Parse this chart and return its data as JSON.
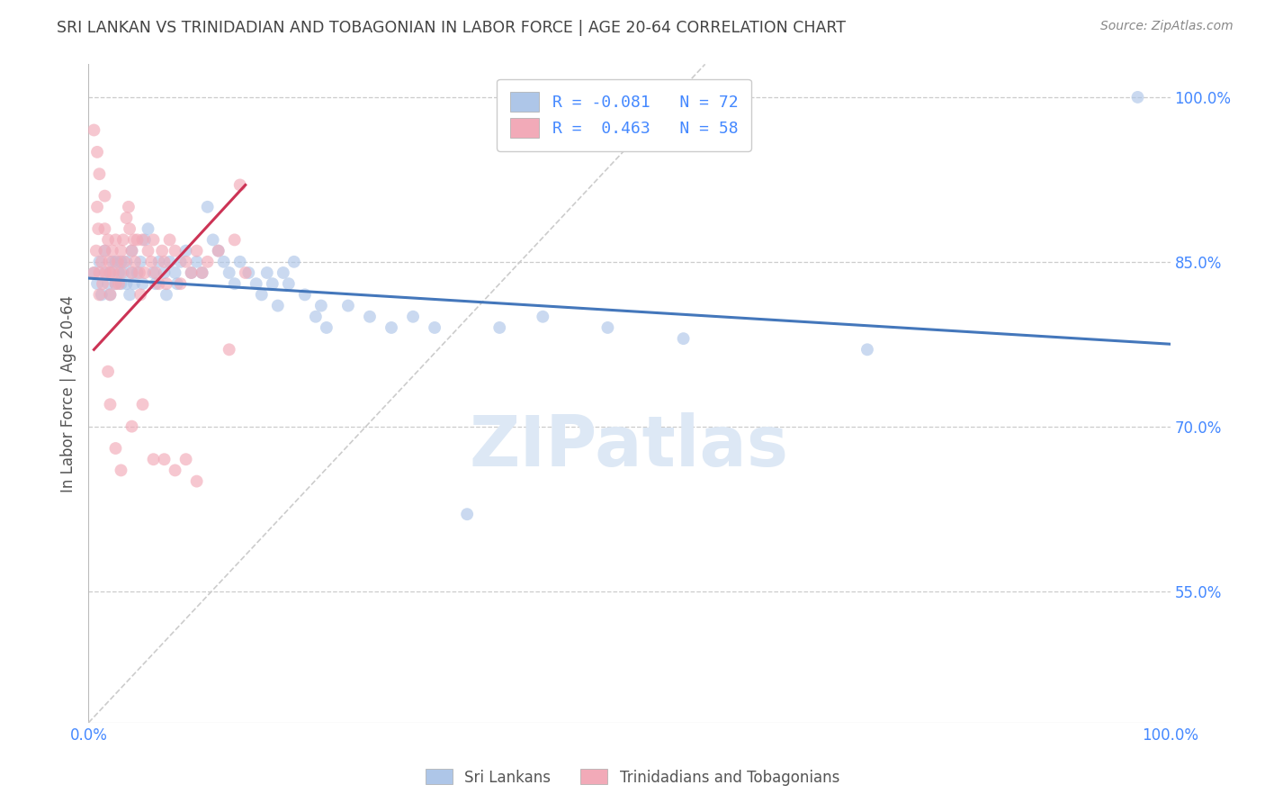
{
  "title": "SRI LANKAN VS TRINIDADIAN AND TOBAGONIAN IN LABOR FORCE | AGE 20-64 CORRELATION CHART",
  "source": "Source: ZipAtlas.com",
  "ylabel": "In Labor Force | Age 20-64",
  "xlim": [
    0.0,
    1.0
  ],
  "ylim": [
    0.43,
    1.03
  ],
  "x_ticks": [
    0.0,
    0.25,
    0.5,
    0.75,
    1.0
  ],
  "x_tick_labels": [
    "0.0%",
    "",
    "",
    "",
    "100.0%"
  ],
  "y_ticks_right": [
    0.55,
    0.7,
    0.85,
    1.0
  ],
  "y_tick_labels_right": [
    "55.0%",
    "70.0%",
    "85.0%",
    "100.0%"
  ],
  "legend_text_blue": "R = -0.081   N = 72",
  "legend_text_pink": "R =  0.463   N = 58",
  "sri_lankan_color": "#aec6e8",
  "trinidadian_color": "#f2aab8",
  "blue_line_color": "#4477bb",
  "pink_line_color": "#cc3355",
  "diag_line_color": "#cccccc",
  "background_color": "#ffffff",
  "grid_color": "#cccccc",
  "title_color": "#444444",
  "right_axis_color": "#4488ff",
  "marker_size": 100,
  "marker_alpha": 0.65,
  "sri_lankans_x": [
    0.005,
    0.008,
    0.01,
    0.012,
    0.015,
    0.015,
    0.018,
    0.02,
    0.02,
    0.022,
    0.025,
    0.025,
    0.028,
    0.03,
    0.03,
    0.032,
    0.035,
    0.035,
    0.038,
    0.04,
    0.04,
    0.042,
    0.045,
    0.048,
    0.05,
    0.052,
    0.055,
    0.06,
    0.062,
    0.065,
    0.07,
    0.072,
    0.075,
    0.08,
    0.082,
    0.085,
    0.09,
    0.095,
    0.1,
    0.105,
    0.11,
    0.115,
    0.12,
    0.125,
    0.13,
    0.135,
    0.14,
    0.148,
    0.155,
    0.16,
    0.165,
    0.17,
    0.175,
    0.18,
    0.185,
    0.19,
    0.2,
    0.21,
    0.215,
    0.22,
    0.24,
    0.26,
    0.28,
    0.3,
    0.32,
    0.35,
    0.38,
    0.42,
    0.48,
    0.55,
    0.72,
    0.97
  ],
  "sri_lankans_y": [
    0.84,
    0.83,
    0.85,
    0.82,
    0.84,
    0.86,
    0.83,
    0.84,
    0.82,
    0.85,
    0.83,
    0.85,
    0.84,
    0.83,
    0.85,
    0.84,
    0.83,
    0.85,
    0.82,
    0.84,
    0.86,
    0.83,
    0.84,
    0.85,
    0.83,
    0.87,
    0.88,
    0.84,
    0.83,
    0.85,
    0.84,
    0.82,
    0.85,
    0.84,
    0.83,
    0.85,
    0.86,
    0.84,
    0.85,
    0.84,
    0.9,
    0.87,
    0.86,
    0.85,
    0.84,
    0.83,
    0.85,
    0.84,
    0.83,
    0.82,
    0.84,
    0.83,
    0.81,
    0.84,
    0.83,
    0.85,
    0.82,
    0.8,
    0.81,
    0.79,
    0.81,
    0.8,
    0.79,
    0.8,
    0.79,
    0.62,
    0.79,
    0.8,
    0.79,
    0.78,
    0.77,
    1.0
  ],
  "trinidadians_x": [
    0.005,
    0.007,
    0.008,
    0.009,
    0.01,
    0.01,
    0.012,
    0.013,
    0.015,
    0.015,
    0.016,
    0.018,
    0.019,
    0.02,
    0.02,
    0.022,
    0.023,
    0.025,
    0.025,
    0.027,
    0.028,
    0.03,
    0.03,
    0.032,
    0.033,
    0.035,
    0.037,
    0.038,
    0.04,
    0.04,
    0.042,
    0.043,
    0.045,
    0.047,
    0.048,
    0.05,
    0.052,
    0.055,
    0.058,
    0.06,
    0.062,
    0.065,
    0.068,
    0.07,
    0.072,
    0.075,
    0.08,
    0.085,
    0.09,
    0.095,
    0.1,
    0.105,
    0.11,
    0.12,
    0.13,
    0.135,
    0.14,
    0.145
  ],
  "trinidadians_y": [
    0.84,
    0.86,
    0.9,
    0.88,
    0.84,
    0.82,
    0.85,
    0.83,
    0.88,
    0.86,
    0.84,
    0.87,
    0.85,
    0.84,
    0.82,
    0.86,
    0.84,
    0.83,
    0.87,
    0.85,
    0.83,
    0.86,
    0.84,
    0.87,
    0.85,
    0.89,
    0.9,
    0.88,
    0.84,
    0.86,
    0.87,
    0.85,
    0.87,
    0.84,
    0.82,
    0.87,
    0.84,
    0.86,
    0.85,
    0.87,
    0.84,
    0.83,
    0.86,
    0.85,
    0.83,
    0.87,
    0.86,
    0.83,
    0.85,
    0.84,
    0.86,
    0.84,
    0.85,
    0.86,
    0.77,
    0.87,
    0.92,
    0.84
  ],
  "pink_extra_x": [
    0.005,
    0.008,
    0.01,
    0.015,
    0.018,
    0.02,
    0.025,
    0.03,
    0.04,
    0.05,
    0.06,
    0.07,
    0.08,
    0.09,
    0.1
  ],
  "pink_extra_y": [
    0.97,
    0.95,
    0.93,
    0.91,
    0.75,
    0.72,
    0.68,
    0.66,
    0.7,
    0.72,
    0.67,
    0.67,
    0.66,
    0.67,
    0.65
  ],
  "blue_line_x": [
    0.0,
    1.0
  ],
  "blue_line_y": [
    0.835,
    0.775
  ],
  "pink_line_x": [
    0.005,
    0.145
  ],
  "pink_line_y": [
    0.77,
    0.92
  ],
  "diag_line_x": [
    0.0,
    0.57
  ],
  "diag_line_y": [
    0.43,
    1.03
  ]
}
